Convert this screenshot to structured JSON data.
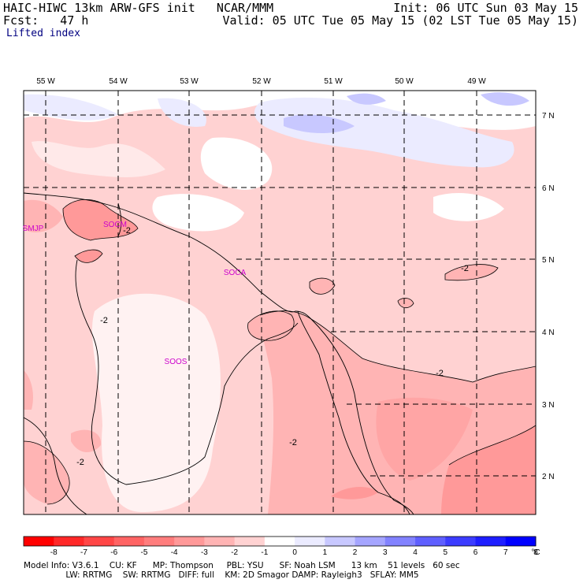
{
  "header": {
    "model": "HAIC-HIWC 13km ARW-GFS init   NCAR/MMM",
    "forecast": "Fcst:   47 h",
    "init": "Init: 06 UTC Sun 03 May 15",
    "valid": "Valid: 05 UTC Tue 05 May 15 (02 LST Tue 05 May 15)",
    "field": "Lifted index"
  },
  "map": {
    "lon_labels": [
      "55 W",
      "54 W",
      "53 W",
      "52 W",
      "51 W",
      "50 W",
      "49 W"
    ],
    "lat_labels": [
      "7 N",
      "6 N",
      "5 N",
      "4 N",
      "3 N",
      "2 N"
    ],
    "stations": [
      "SMJP",
      "SOCA",
      "SOOS",
      "SOCM"
    ],
    "contour_labels": [
      "-2",
      "-2",
      "-2",
      "-2",
      "-2",
      "-2"
    ]
  },
  "colorbar": {
    "ticks": [
      "-8",
      "-7",
      "-6",
      "-5",
      "-4",
      "-3",
      "-2",
      "-1",
      "0",
      "1",
      "2",
      "3",
      "4",
      "5",
      "6",
      "7",
      "8"
    ],
    "unit": "°C",
    "colors": [
      "#ff0000",
      "#ff2828",
      "#ff4646",
      "#ff6464",
      "#ff7d7d",
      "#ff9999",
      "#ffb4b4",
      "#ffd2d2",
      "#ffffff",
      "#ebebff",
      "#c8c8ff",
      "#a5a5ff",
      "#8282ff",
      "#5f5fff",
      "#3c3cff",
      "#1e1eff",
      "#0000ff"
    ]
  },
  "footer": {
    "line1": "Model Info: V3.6.1    CU: KF      MP: Thompson     PBL: YSU      SF: Noah LSM      13 km    51 levels   60 sec",
    "line2": "                LW: RRTMG    SW: RRTMG   DIFF: full    KM: 2D Smagor DAMP: Rayleigh3   SFLAY: MM5"
  }
}
